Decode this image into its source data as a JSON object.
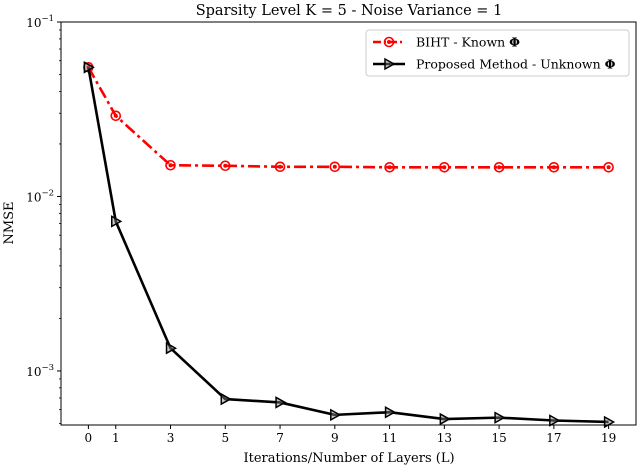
{
  "chart_data": {
    "type": "line",
    "title": "Sparsity Level K = 5 - Noise Variance = 1",
    "xlabel": "Iterations/Number of Layers (L)",
    "ylabel": "NMSE",
    "x_scale": "linear",
    "y_scale": "log",
    "xlim": [
      -1,
      20
    ],
    "ylim": [
      0.00049,
      0.1
    ],
    "x_ticks": [
      0,
      1,
      3,
      5,
      7,
      9,
      11,
      13,
      15,
      17,
      19
    ],
    "y_ticks": [
      {
        "value": 0.1,
        "base": "10",
        "exp": "−1"
      },
      {
        "value": 0.01,
        "base": "10",
        "exp": "−2"
      },
      {
        "value": 0.001,
        "base": "10",
        "exp": "−3"
      }
    ],
    "x": [
      0,
      1,
      3,
      5,
      7,
      9,
      11,
      13,
      15,
      17,
      19
    ],
    "series": [
      {
        "name": "BIHT - Known ",
        "name_symbol": "Φ",
        "color": "#ff0000",
        "line_style": "dash-dot",
        "marker": "circle",
        "values": [
          0.055,
          0.029,
          0.0151,
          0.015,
          0.0148,
          0.0148,
          0.0147,
          0.0147,
          0.0147,
          0.0147,
          0.0147
        ]
      },
      {
        "name": "Proposed Method - Unknown ",
        "name_symbol": "Φ",
        "color": "#000000",
        "line_style": "solid",
        "marker": "triangle-right",
        "values": [
          0.055,
          0.0072,
          0.00135,
          0.00069,
          0.00066,
          0.00056,
          0.00058,
          0.00053,
          0.00054,
          0.00052,
          0.00051
        ]
      }
    ],
    "legend_position": "top-right",
    "grid": false
  }
}
